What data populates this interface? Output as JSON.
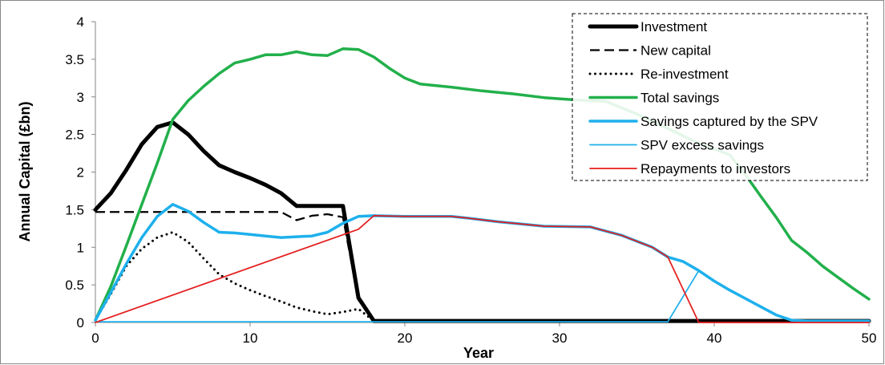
{
  "chart_data": {
    "type": "line",
    "xlabel": "Year",
    "ylabel": "Annual Capital (£bn)",
    "xlim": [
      0,
      50
    ],
    "ylim": [
      0,
      4
    ],
    "xticks": [
      0,
      10,
      20,
      30,
      40,
      50
    ],
    "yticks": [
      "0",
      "0.5",
      "1",
      "1.5",
      "2",
      "2.5",
      "3",
      "3.5",
      "4"
    ],
    "grid": false,
    "legend_position": "top-right",
    "series": [
      {
        "name": "Investment",
        "color": "#000000",
        "style": "solid-thick",
        "points": [
          [
            0,
            1.5
          ],
          [
            1,
            1.72
          ],
          [
            2,
            2.03
          ],
          [
            3,
            2.37
          ],
          [
            4,
            2.6
          ],
          [
            5,
            2.66
          ],
          [
            6,
            2.5
          ],
          [
            7,
            2.28
          ],
          [
            8,
            2.09
          ],
          [
            9,
            2.0
          ],
          [
            10,
            1.92
          ],
          [
            11,
            1.83
          ],
          [
            12,
            1.72
          ],
          [
            13,
            1.55
          ],
          [
            14,
            1.55
          ],
          [
            15,
            1.55
          ],
          [
            16,
            1.55
          ],
          [
            17,
            0.33
          ],
          [
            18,
            0.02
          ],
          [
            20,
            0.02
          ],
          [
            30,
            0.02
          ],
          [
            40,
            0.02
          ],
          [
            50,
            0.02
          ]
        ]
      },
      {
        "name": "New capital",
        "color": "#000000",
        "style": "dashed",
        "points": [
          [
            0,
            1.47
          ],
          [
            5,
            1.47
          ],
          [
            10,
            1.47
          ],
          [
            12,
            1.47
          ],
          [
            13,
            1.36
          ],
          [
            14,
            1.42
          ],
          [
            15,
            1.44
          ],
          [
            16,
            1.4
          ],
          [
            17,
            0.3
          ],
          [
            18,
            0.02
          ],
          [
            20,
            0.02
          ],
          [
            30,
            0.02
          ],
          [
            40,
            0.02
          ],
          [
            50,
            0.02
          ]
        ]
      },
      {
        "name": "Re-investment",
        "color": "#000000",
        "style": "dotted",
        "points": [
          [
            0,
            0.03
          ],
          [
            1,
            0.38
          ],
          [
            2,
            0.75
          ],
          [
            3,
            0.98
          ],
          [
            4,
            1.13
          ],
          [
            5,
            1.2
          ],
          [
            6,
            1.07
          ],
          [
            7,
            0.85
          ],
          [
            8,
            0.64
          ],
          [
            9,
            0.52
          ],
          [
            10,
            0.43
          ],
          [
            11,
            0.35
          ],
          [
            12,
            0.28
          ],
          [
            13,
            0.2
          ],
          [
            14,
            0.15
          ],
          [
            15,
            0.11
          ],
          [
            16,
            0.14
          ],
          [
            17,
            0.18
          ],
          [
            18,
            0.02
          ],
          [
            20,
            0.02
          ],
          [
            30,
            0.02
          ],
          [
            40,
            0.02
          ],
          [
            50,
            0.02
          ]
        ]
      },
      {
        "name": "Total savings",
        "color": "#22b04b",
        "style": "solid-medium",
        "points": [
          [
            0,
            0.03
          ],
          [
            1,
            0.48
          ],
          [
            2,
            1.02
          ],
          [
            3,
            1.57
          ],
          [
            4,
            2.12
          ],
          [
            5,
            2.7
          ],
          [
            6,
            2.95
          ],
          [
            7,
            3.14
          ],
          [
            8,
            3.31
          ],
          [
            9,
            3.45
          ],
          [
            10,
            3.5
          ],
          [
            11,
            3.56
          ],
          [
            12,
            3.56
          ],
          [
            13,
            3.6
          ],
          [
            14,
            3.56
          ],
          [
            15,
            3.55
          ],
          [
            16,
            3.64
          ],
          [
            17,
            3.63
          ],
          [
            18,
            3.53
          ],
          [
            19,
            3.38
          ],
          [
            20,
            3.25
          ],
          [
            21,
            3.17
          ],
          [
            23,
            3.13
          ],
          [
            25,
            3.08
          ],
          [
            27,
            3.04
          ],
          [
            29,
            2.99
          ],
          [
            31,
            2.96
          ],
          [
            33,
            2.94
          ],
          [
            35,
            2.77
          ],
          [
            37,
            2.58
          ],
          [
            39,
            2.38
          ],
          [
            41,
            2.23
          ],
          [
            42,
            1.97
          ],
          [
            43,
            1.68
          ],
          [
            44,
            1.4
          ],
          [
            45,
            1.09
          ],
          [
            46,
            0.93
          ],
          [
            47,
            0.75
          ],
          [
            48,
            0.6
          ],
          [
            49,
            0.45
          ],
          [
            50,
            0.31
          ]
        ]
      },
      {
        "name": "Savings captured by the SPV",
        "color": "#1eb0ec",
        "style": "solid-medium",
        "points": [
          [
            0,
            0.03
          ],
          [
            1,
            0.4
          ],
          [
            2,
            0.78
          ],
          [
            3,
            1.13
          ],
          [
            4,
            1.41
          ],
          [
            5,
            1.57
          ],
          [
            6,
            1.48
          ],
          [
            7,
            1.33
          ],
          [
            8,
            1.2
          ],
          [
            9,
            1.19
          ],
          [
            10,
            1.17
          ],
          [
            11,
            1.15
          ],
          [
            12,
            1.13
          ],
          [
            13,
            1.14
          ],
          [
            14,
            1.15
          ],
          [
            15,
            1.2
          ],
          [
            16,
            1.32
          ],
          [
            17,
            1.41
          ],
          [
            18,
            1.42
          ],
          [
            20,
            1.41
          ],
          [
            23,
            1.41
          ],
          [
            24,
            1.39
          ],
          [
            26,
            1.34
          ],
          [
            28,
            1.3
          ],
          [
            29,
            1.28
          ],
          [
            32,
            1.27
          ],
          [
            34,
            1.16
          ],
          [
            36,
            1.0
          ],
          [
            37,
            0.87
          ],
          [
            38,
            0.81
          ],
          [
            39,
            0.69
          ],
          [
            40,
            0.55
          ],
          [
            41,
            0.43
          ],
          [
            42,
            0.32
          ],
          [
            43,
            0.21
          ],
          [
            44,
            0.1
          ],
          [
            45,
            0.03
          ],
          [
            46,
            0.02
          ],
          [
            50,
            0.02
          ]
        ]
      },
      {
        "name": "SPV excess savings",
        "color": "#1eb0ec",
        "style": "solid-thin",
        "points": [
          [
            0,
            0.01
          ],
          [
            10,
            0.01
          ],
          [
            20,
            0.01
          ],
          [
            30,
            0.01
          ],
          [
            37,
            0.01
          ],
          [
            39,
            0.69
          ],
          [
            40,
            0.55
          ],
          [
            41,
            0.43
          ],
          [
            42,
            0.32
          ],
          [
            43,
            0.21
          ],
          [
            44,
            0.1
          ],
          [
            45,
            0.03
          ],
          [
            46,
            0.02
          ],
          [
            50,
            0.02
          ]
        ]
      },
      {
        "name": "Repayments to investors",
        "color": "#e41e1e",
        "style": "solid-thin",
        "points": [
          [
            0,
            0.0
          ],
          [
            17,
            1.24
          ],
          [
            18,
            1.42
          ],
          [
            20,
            1.41
          ],
          [
            23,
            1.41
          ],
          [
            24,
            1.39
          ],
          [
            26,
            1.34
          ],
          [
            28,
            1.3
          ],
          [
            29,
            1.28
          ],
          [
            32,
            1.27
          ],
          [
            34,
            1.16
          ],
          [
            36,
            1.0
          ],
          [
            37,
            0.87
          ],
          [
            39,
            0.0
          ],
          [
            50,
            0.0
          ]
        ]
      }
    ]
  }
}
